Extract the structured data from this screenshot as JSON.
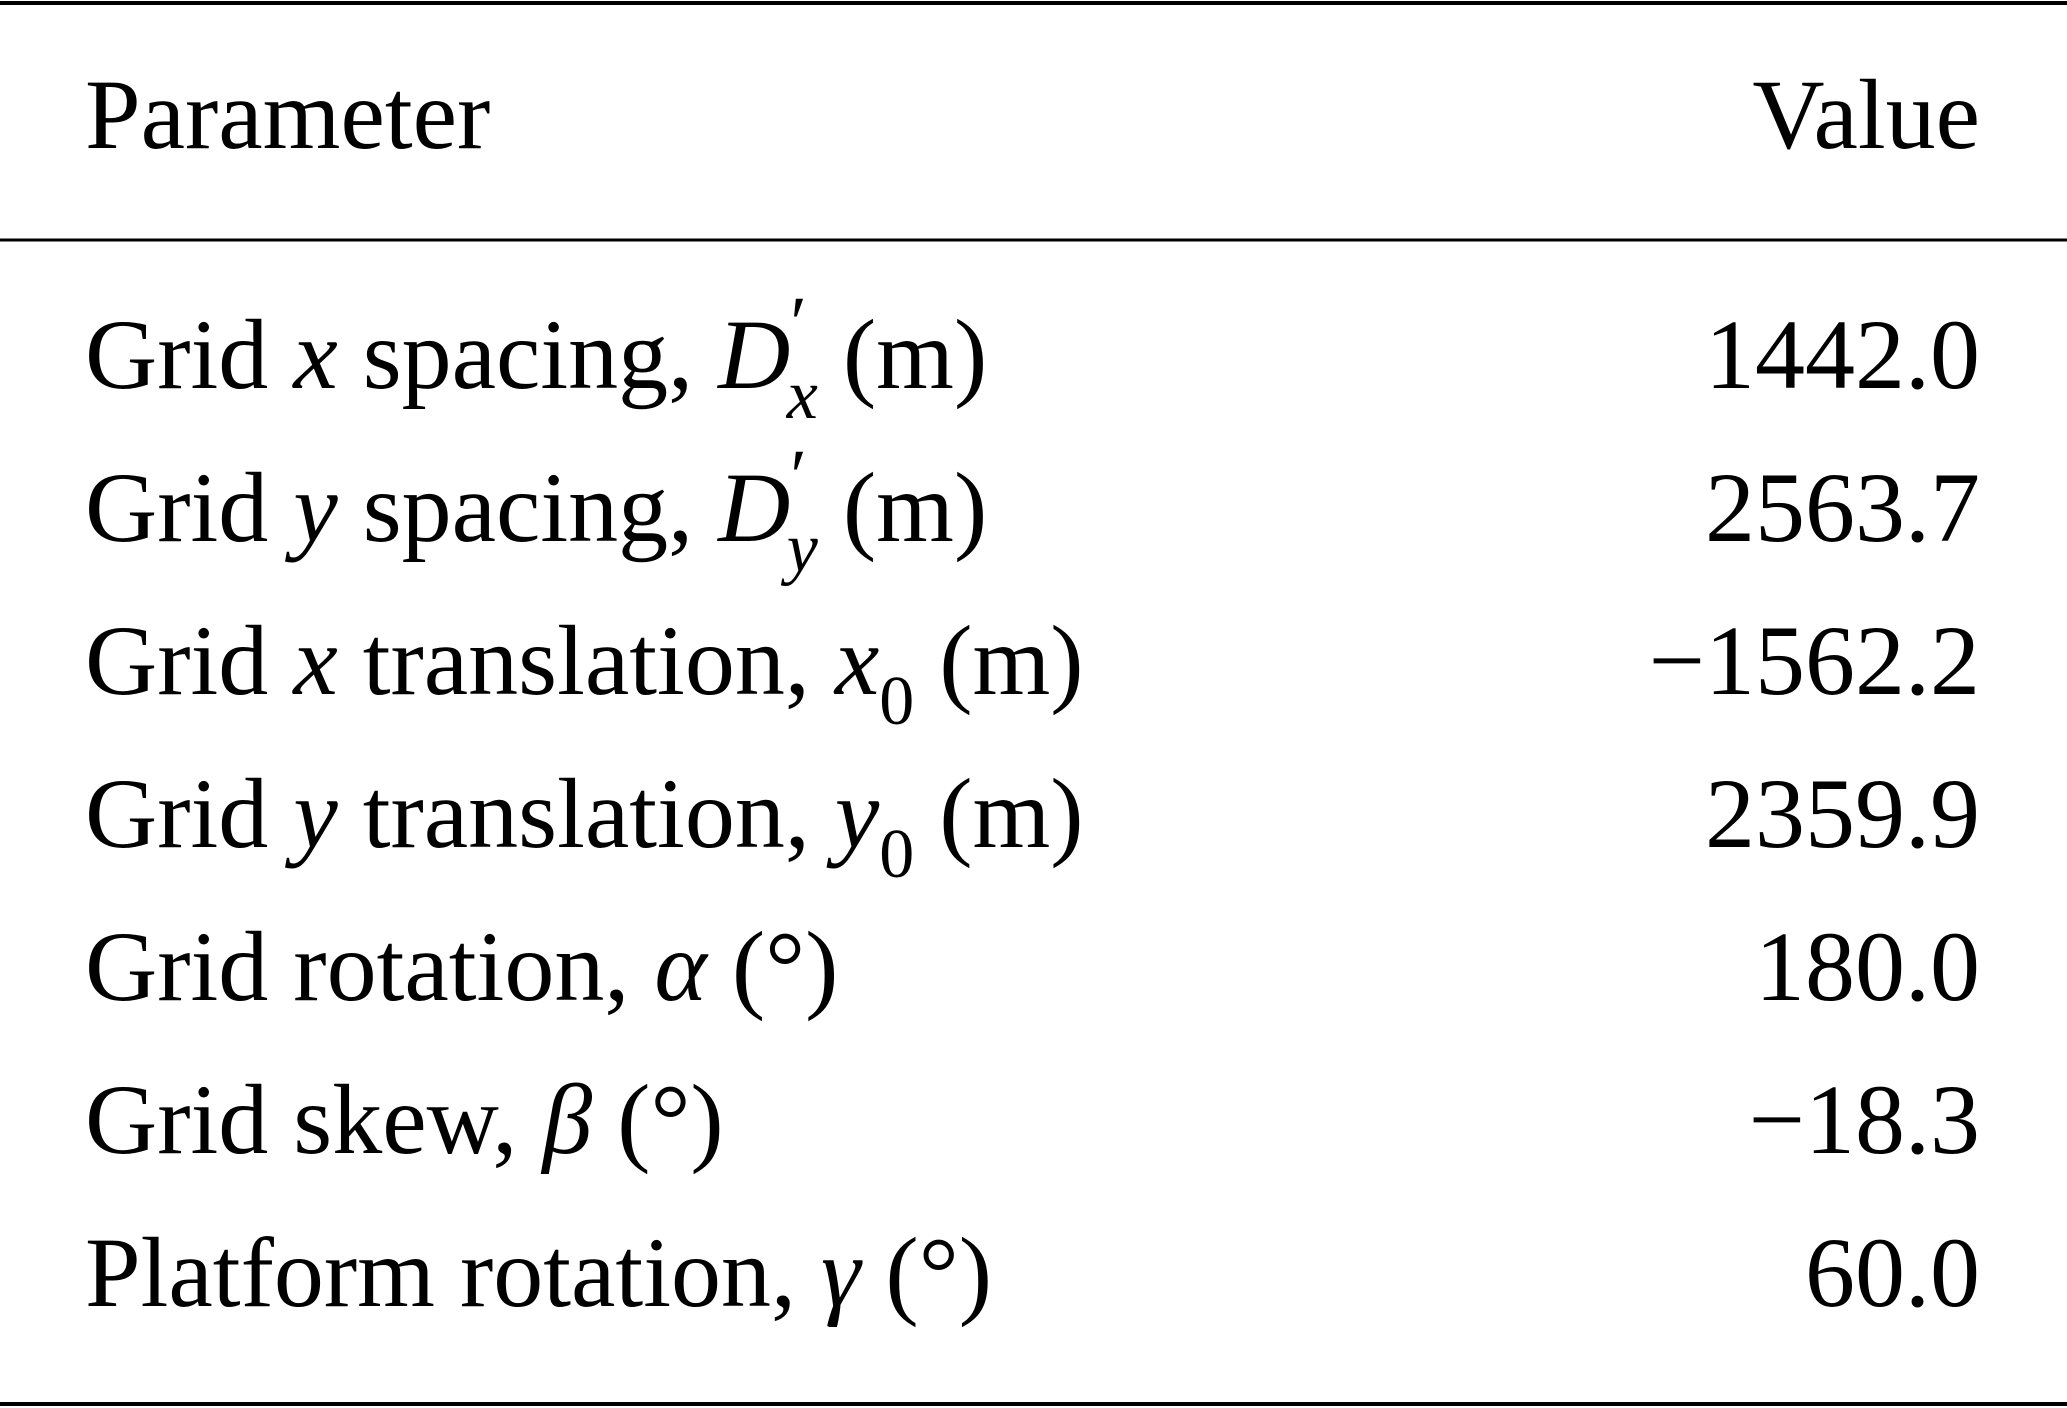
{
  "table": {
    "header": [
      "Parameter",
      "Value"
    ],
    "rows": [
      {
        "parameter": [
          {
            "text": "Grid "
          },
          {
            "text": "x",
            "style": "italic"
          },
          {
            "text": " spacing, "
          },
          {
            "text": "D",
            "style": "italic"
          },
          {
            "text": "′",
            "style": "sup"
          },
          {
            "text": "x",
            "style": "sub-italic"
          },
          {
            "text": " (m)"
          }
        ],
        "value": "1442.0"
      },
      {
        "parameter": [
          {
            "text": "Grid "
          },
          {
            "text": "y",
            "style": "italic"
          },
          {
            "text": " spacing, "
          },
          {
            "text": "D",
            "style": "italic"
          },
          {
            "text": "′",
            "style": "sup"
          },
          {
            "text": "y",
            "style": "sub-italic"
          },
          {
            "text": " (m)"
          }
        ],
        "value": "2563.7"
      },
      {
        "parameter": [
          {
            "text": "Grid "
          },
          {
            "text": "x",
            "style": "italic"
          },
          {
            "text": " translation, "
          },
          {
            "text": "x",
            "style": "italic"
          },
          {
            "text": "0",
            "style": "sub"
          },
          {
            "text": " (m)"
          }
        ],
        "value": "−1562.2"
      },
      {
        "parameter": [
          {
            "text": "Grid "
          },
          {
            "text": "y",
            "style": "italic"
          },
          {
            "text": " translation, "
          },
          {
            "text": "y",
            "style": "italic"
          },
          {
            "text": "0",
            "style": "sub"
          },
          {
            "text": " (m)"
          }
        ],
        "value": "2359.9"
      },
      {
        "parameter": [
          {
            "text": "Grid rotation, "
          },
          {
            "text": "α",
            "style": "italic"
          },
          {
            "text": " (°)"
          }
        ],
        "value": "180.0"
      },
      {
        "parameter": [
          {
            "text": "Grid skew, "
          },
          {
            "text": "β",
            "style": "italic"
          },
          {
            "text": " (°)"
          }
        ],
        "value": "−18.3"
      },
      {
        "parameter": [
          {
            "text": "Platform rotation, "
          },
          {
            "text": "γ",
            "style": "italic"
          },
          {
            "text": " (°)"
          }
        ],
        "value": "60.0"
      }
    ]
  }
}
